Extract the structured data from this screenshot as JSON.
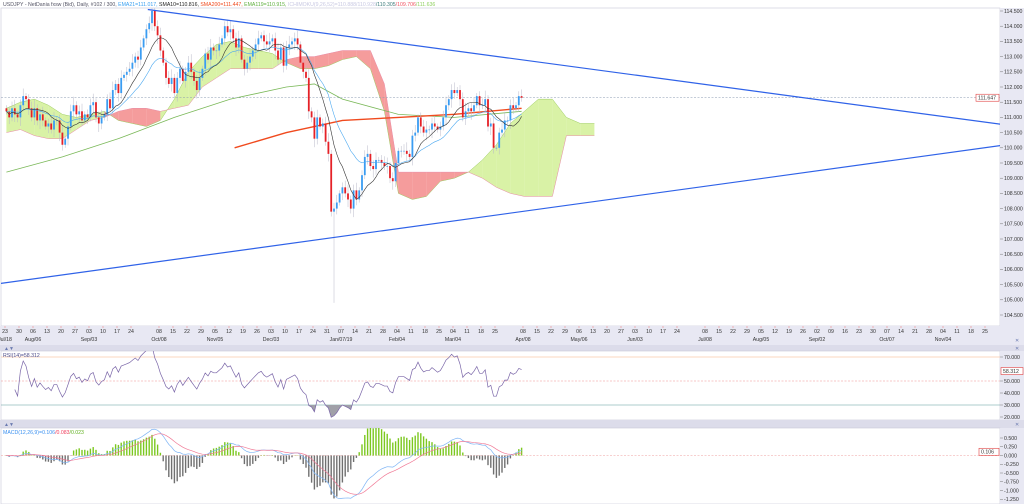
{
  "header": {
    "symbol": "USDJPY - NetDania fxsw (Bid), Daily, #102 / 300, ",
    "ema21": "EMA21=111.017, ",
    "sma10": "SMA10=110.816, ",
    "sma200": "SMA200=111.447, ",
    "ema119": "EMA119=110.915, ",
    "ichimoku": "ICHIMOKU(9,26,52)=110.888/110.928",
    "ichimoku_b": "/110.305",
    "ichimoku_c": "/109.706",
    "ichimoku_d": "/111.636"
  },
  "colors": {
    "up": "#3a9cf2",
    "down": "#e52127",
    "wick": "#b8b8c8",
    "ema21": "#4aa8f0",
    "sma10": "#333333",
    "sma200": "#f04a1e",
    "ema119": "#7ab858",
    "cloud_bull": "#d9f2a6",
    "cloud_bear": "#f59c9c",
    "span_a": "#9ccc60",
    "span_b": "#e88aa6",
    "trendline": "#2f62e8",
    "panel": "#e8e8f3",
    "rsi": "#7a66a8",
    "macd": "#7fb5f5",
    "signal": "#f07a96",
    "hist_pos": "#7cc820",
    "hist_neg": "#707070"
  },
  "chart_data": {
    "type": "candlestick",
    "symbol": "USDJPY",
    "timeframe": "Daily",
    "ylim": [
      104.5,
      114.5
    ],
    "y_ticks": [
      "114.500",
      "114.000",
      "113.500",
      "113.000",
      "112.500",
      "112.000",
      "111.500",
      "111.000",
      "110.500",
      "110.000",
      "109.500",
      "109.000",
      "108.500",
      "108.000",
      "107.500",
      "107.000",
      "106.500",
      "106.000",
      "105.500",
      "105.000",
      "104.500"
    ],
    "last_price": 111.647,
    "last_price_label": "111.647",
    "x_ticks": [
      {
        "d": "23",
        "m": "Jul/18"
      },
      {
        "d": "30"
      },
      {
        "d": "06",
        "m": "Aug/06"
      },
      {
        "d": "13"
      },
      {
        "d": "20"
      },
      {
        "d": "27"
      },
      {
        "d": "03",
        "m": "Sep/03"
      },
      {
        "d": "10"
      },
      {
        "d": "17"
      },
      {
        "d": "24"
      },
      {
        "d": ""
      },
      {
        "d": "08",
        "m": "Oct/08"
      },
      {
        "d": "15"
      },
      {
        "d": "22"
      },
      {
        "d": "29"
      },
      {
        "d": "05",
        "m": "Nov/05"
      },
      {
        "d": "12"
      },
      {
        "d": "19"
      },
      {
        "d": "26"
      },
      {
        "d": "03",
        "m": "Dec/03"
      },
      {
        "d": "10"
      },
      {
        "d": "17"
      },
      {
        "d": "24"
      },
      {
        "d": "31"
      },
      {
        "d": "07",
        "m": "Jan/07/19"
      },
      {
        "d": "14"
      },
      {
        "d": "21"
      },
      {
        "d": "28"
      },
      {
        "d": "04",
        "m": "Feb/04"
      },
      {
        "d": "11"
      },
      {
        "d": "18"
      },
      {
        "d": "25"
      },
      {
        "d": "04",
        "m": "Mar/04"
      },
      {
        "d": "11"
      },
      {
        "d": "18"
      },
      {
        "d": "25"
      },
      {
        "d": ""
      },
      {
        "d": "08",
        "m": "Apr/08"
      },
      {
        "d": "15"
      },
      {
        "d": "22"
      },
      {
        "d": "29"
      },
      {
        "d": "06",
        "m": "May/06"
      },
      {
        "d": "13"
      },
      {
        "d": "20"
      },
      {
        "d": "27"
      },
      {
        "d": "03",
        "m": "Jun/03"
      },
      {
        "d": "10"
      },
      {
        "d": "17"
      },
      {
        "d": "24"
      },
      {
        "d": ""
      },
      {
        "d": "08",
        "m": "Jul/08"
      },
      {
        "d": "15"
      },
      {
        "d": "22"
      },
      {
        "d": "29"
      },
      {
        "d": "05",
        "m": "Aug/05"
      },
      {
        "d": "12"
      },
      {
        "d": "19"
      },
      {
        "d": "26"
      },
      {
        "d": "02",
        "m": "Sep/02"
      },
      {
        "d": "09"
      },
      {
        "d": "16"
      },
      {
        "d": "23"
      },
      {
        "d": "30"
      },
      {
        "d": "07",
        "m": "Oct/07"
      },
      {
        "d": "14"
      },
      {
        "d": "21"
      },
      {
        "d": "28"
      },
      {
        "d": "04",
        "m": "Nov/04"
      },
      {
        "d": "11"
      },
      {
        "d": "18"
      },
      {
        "d": "25"
      }
    ],
    "weekly_closes": [
      [
        111.2,
        111.0,
        111.3,
        111.1,
        111.0
      ],
      [
        111.4,
        111.7,
        111.6,
        111.3,
        111.0
      ],
      [
        111.3,
        110.9,
        111.1,
        110.9,
        110.7
      ],
      [
        110.8,
        110.6,
        110.9,
        110.9,
        110.5
      ],
      [
        110.1,
        110.3,
        110.7,
        111.2,
        111.4
      ],
      [
        111.1,
        111.2,
        110.9,
        111.1,
        111.0
      ],
      [
        111.4,
        111.5,
        111.0,
        110.8,
        111.0
      ],
      [
        111.1,
        111.6,
        111.3,
        111.9,
        112.1
      ],
      [
        111.8,
        112.3,
        112.4,
        112.5,
        112.6
      ],
      [
        112.8,
        113.0,
        112.9,
        113.3,
        113.6
      ],
      [
        113.9,
        114.1,
        114.5,
        114.0,
        113.7
      ],
      [
        113.2,
        112.8,
        112.3,
        112.1,
        112.3
      ],
      [
        111.8,
        112.3,
        112.6,
        112.2,
        112.5
      ],
      [
        112.8,
        112.5,
        112.2,
        111.9,
        112.3
      ],
      [
        112.6,
        113.1,
        112.9,
        113.3,
        113.2
      ],
      [
        113.2,
        113.4,
        113.6,
        114.0,
        113.8
      ],
      [
        113.9,
        113.6,
        113.3,
        113.6,
        112.9
      ],
      [
        112.6,
        112.8,
        113.0,
        113.2,
        113.4
      ],
      [
        113.6,
        113.7,
        113.5,
        113.4,
        113.5
      ],
      [
        113.6,
        113.2,
        112.9,
        113.3,
        112.7
      ],
      [
        113.3,
        113.4,
        113.5,
        113.6,
        113.4
      ],
      [
        112.8,
        112.5,
        112.3,
        111.2,
        111.0
      ],
      [
        110.3,
        111.0,
        110.7,
        110.8,
        110.2
      ],
      [
        109.8,
        107.9,
        108.0,
        108.2,
        108.5
      ],
      [
        108.7,
        108.5,
        108.3,
        108.0,
        108.6
      ],
      [
        108.3,
        108.6,
        109.1,
        109.7,
        109.8
      ],
      [
        109.4,
        109.3,
        109.6,
        109.6,
        109.5
      ],
      [
        109.4,
        109.4,
        109.0,
        108.9,
        109.5
      ],
      [
        109.9,
        109.9,
        109.9,
        109.8,
        109.7
      ],
      [
        110.4,
        110.5,
        111.0,
        110.7,
        110.5
      ],
      [
        110.6,
        110.6,
        110.8,
        110.7,
        110.6
      ],
      [
        110.7,
        111.0,
        111.4,
        111.6,
        111.9
      ],
      [
        111.8,
        111.9,
        111.6,
        111.0,
        111.2
      ],
      [
        111.3,
        111.2,
        111.4,
        111.7,
        111.4
      ],
      [
        111.4,
        111.6,
        110.7,
        110.8,
        110.0
      ],
      [
        110.0,
        110.5,
        110.6,
        110.9,
        110.9
      ],
      [
        111.4,
        111.3,
        111.4,
        111.7,
        111.647
      ]
    ],
    "spike_low": {
      "week": 23,
      "day": 2,
      "low": 104.9
    },
    "ichimoku": {
      "span_a": [
        111.3,
        111.5,
        111.6,
        111.4,
        111.1,
        111.0,
        111.1,
        111.2,
        110.9,
        110.8,
        110.7,
        110.9,
        111.6,
        112.5,
        113.0,
        113.4,
        113.5,
        113.3,
        113.2,
        113.1,
        112.8,
        112.6,
        112.6,
        112.7,
        112.9,
        113.0,
        112.6,
        111.2,
        108.5,
        108.3,
        108.4,
        108.9,
        109.0,
        109.2,
        109.6,
        110.1,
        110.8,
        111.2,
        111.6,
        111.6,
        111.0,
        110.8,
        110.8
      ],
      "span_b": [
        110.5,
        110.6,
        110.4,
        110.3,
        110.3,
        110.6,
        110.9,
        111.0,
        111.2,
        111.3,
        111.3,
        111.2,
        111.3,
        111.4,
        112.0,
        112.3,
        112.6,
        112.6,
        112.6,
        112.6,
        112.9,
        113.0,
        113.0,
        113.1,
        113.2,
        113.2,
        113.2,
        112.1,
        109.2,
        109.2,
        109.2,
        109.2,
        109.2,
        109.2,
        109.0,
        108.7,
        108.5,
        108.4,
        108.4,
        108.4,
        110.4,
        110.4,
        110.4
      ]
    },
    "sma200": [
      [
        16.3,
        110.0
      ],
      [
        20,
        110.5
      ],
      [
        24,
        110.9
      ],
      [
        28,
        111.0
      ],
      [
        32,
        111.1
      ],
      [
        36.8,
        111.3
      ]
    ],
    "ema119": [
      [
        0,
        109.2
      ],
      [
        4,
        109.7
      ],
      [
        8,
        110.3
      ],
      [
        12,
        111.0
      ],
      [
        16,
        111.6
      ],
      [
        20,
        112.0
      ],
      [
        22,
        112.1
      ],
      [
        24,
        111.6
      ],
      [
        28,
        111.1
      ],
      [
        32,
        111.0
      ],
      [
        36.8,
        111.2
      ]
    ],
    "trendlines": [
      [
        [
          10.1,
          114.55
        ],
        [
          71.1,
          110.77
        ]
      ],
      [
        [
          -0.4,
          105.54
        ],
        [
          71.1,
          110.08
        ]
      ]
    ]
  },
  "rsi": {
    "label": "RSI(14)=58.312",
    "value_label": "58.312",
    "ylim": [
      20,
      70
    ],
    "y_ticks": [
      "70.000",
      "50.000",
      "40.000",
      "30.000",
      "20.000"
    ],
    "levels": [
      70,
      50,
      30
    ]
  },
  "macd": {
    "label": "MACD(12,26,9)=0.106",
    "label_signal": "/0.083",
    "label_hist": "/0.023",
    "value_label": "0.106",
    "y_ticks": [
      "0.500",
      "0.250",
      "0.000",
      "-0.250",
      "-0.500",
      "-0.750",
      "-1.000",
      "-1.250"
    ]
  }
}
